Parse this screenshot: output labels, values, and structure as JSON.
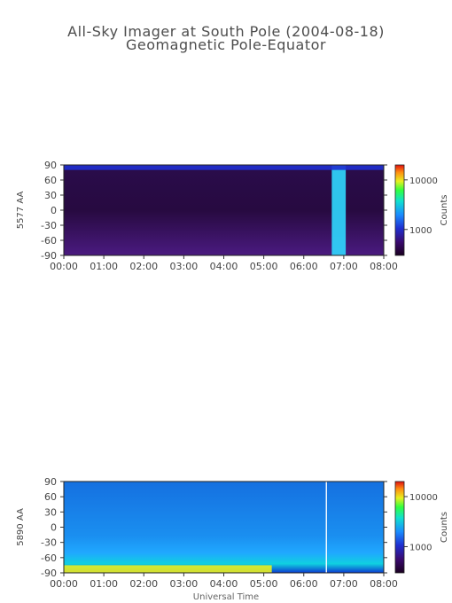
{
  "title_line1": "All-Sky Imager at South Pole (2004-08-18)",
  "title_line2": "Geomagnetic Pole-Equator",
  "xlabel": "Universal Time",
  "chart_data": [
    {
      "type": "heatmap",
      "ylabel": "5577 AA",
      "x_ticks": [
        "00:00",
        "01:00",
        "02:00",
        "03:00",
        "04:00",
        "05:00",
        "06:00",
        "07:00",
        "08:00"
      ],
      "x_range_hours": [
        0,
        8
      ],
      "y_ticks": [
        90,
        60,
        30,
        0,
        -30,
        -60,
        -90
      ],
      "ylim": [
        -90,
        90
      ],
      "colorbar": {
        "label": "Counts",
        "scale": "log",
        "ticks": [
          "10000",
          "1000"
        ],
        "range": [
          300,
          20000
        ]
      },
      "background_level": "low",
      "features": [
        {
          "t_start": 6.7,
          "t_end": 7.05,
          "lat_range": [
            -90,
            90
          ],
          "level": "high"
        },
        {
          "t_start": 0.0,
          "t_end": 8.0,
          "lat_range": [
            80,
            90
          ],
          "level": "medium"
        }
      ]
    },
    {
      "type": "heatmap",
      "ylabel": "5890 AA",
      "x_ticks": [
        "00:00",
        "01:00",
        "02:00",
        "03:00",
        "04:00",
        "05:00",
        "06:00",
        "07:00",
        "08:00"
      ],
      "x_range_hours": [
        0,
        8
      ],
      "y_ticks": [
        90,
        60,
        30,
        0,
        -30,
        -60,
        -90
      ],
      "ylim": [
        -90,
        90
      ],
      "colorbar": {
        "label": "Counts",
        "scale": "log",
        "ticks": [
          "10000",
          "1000"
        ],
        "range": [
          300,
          20000
        ]
      },
      "background_level": "medium",
      "features": [
        {
          "t_start": 0.0,
          "t_end": 5.2,
          "lat_range": [
            -90,
            -75
          ],
          "level": "high"
        },
        {
          "t_start": 6.55,
          "t_end": 6.58,
          "lat_range": [
            -90,
            90
          ],
          "level": "gap"
        }
      ]
    }
  ]
}
